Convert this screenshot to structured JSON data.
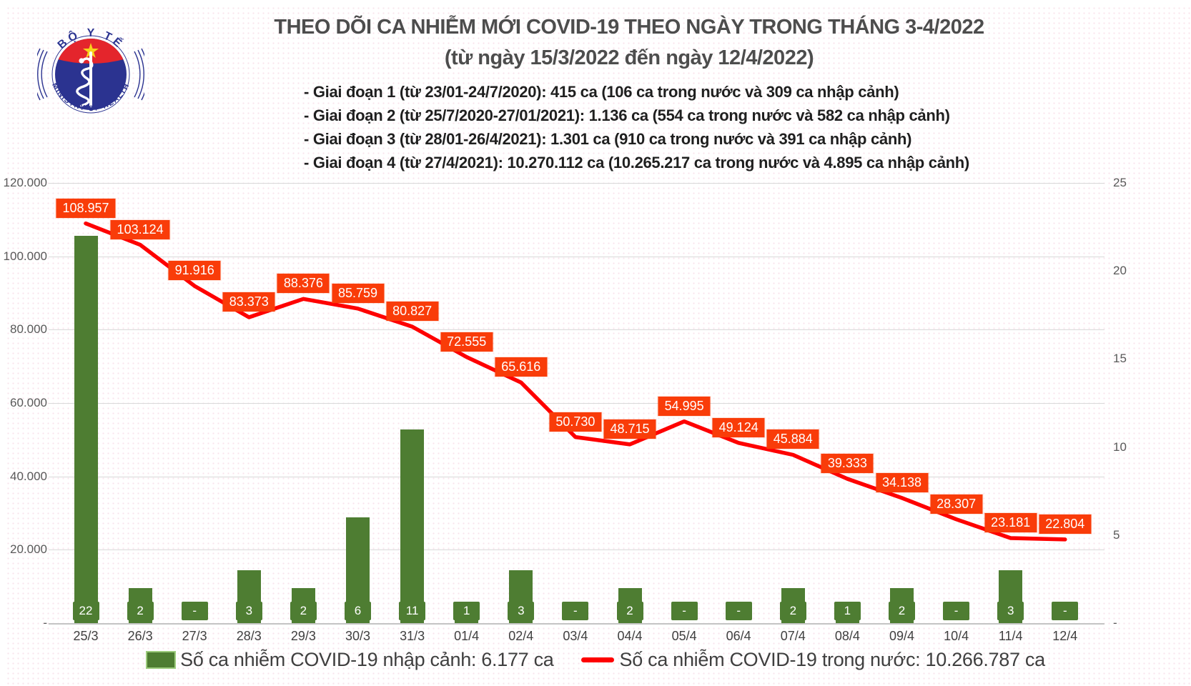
{
  "header": {
    "logo": {
      "top_text": "BỘ Y TẾ",
      "bottom_text": "MINISTRY OF HEALTH",
      "colors": {
        "red": "#e4252c",
        "blue": "#2b3390",
        "star": "#f8d21a"
      }
    },
    "title_line1": "THEO DÕI CA NHIỄM MỚI COVID-19 THEO NGÀY TRONG THÁNG 3-4/2022",
    "title_line2": "(từ ngày 15/3/2022 đến ngày 12/4/2022)",
    "periods": [
      "- Giai đoạn 1 (từ 23/01-24/7/2020): 415 ca (106 ca trong nước và 309 ca nhập cảnh)",
      "- Giai đoạn 2 (từ 25/7/2020-27/01/2021): 1.136 ca (554 ca trong nước và 582 ca nhập cảnh)",
      "- Giai đoạn 3 (từ 28/01-26/4/2021): 1.301 ca (910 ca trong nước và 391 ca nhập cảnh)",
      "- Giai đoạn 4 (từ 27/4/2021): 10.270.112 ca (10.265.217 ca trong nước và 4.895 ca nhập cảnh)"
    ]
  },
  "chart_data": {
    "type": "combo bar+line",
    "categories": [
      "25/3",
      "26/3",
      "27/3",
      "28/3",
      "29/3",
      "30/3",
      "31/3",
      "01/4",
      "02/4",
      "03/4",
      "04/4",
      "05/4",
      "06/4",
      "07/4",
      "08/4",
      "09/4",
      "10/4",
      "11/4",
      "12/4"
    ],
    "series": [
      {
        "name": "Số ca nhiễm COVID-19 nhập cảnh",
        "type": "bar",
        "axis": "right",
        "color": "#4e7d32",
        "values": [
          22,
          2,
          null,
          3,
          2,
          6,
          11,
          1,
          3,
          null,
          2,
          null,
          null,
          2,
          1,
          2,
          null,
          3,
          null
        ],
        "labels": [
          "22",
          "2",
          "-",
          "3",
          "2",
          "6",
          "11",
          "1",
          "3",
          "-",
          "2",
          "-",
          "-",
          "2",
          "1",
          "2",
          "-",
          "3",
          "-"
        ]
      },
      {
        "name": "Số ca nhiễm COVID-19 trong nước",
        "type": "line",
        "axis": "left",
        "color": "#fe0000",
        "label_bg": "#f93c09",
        "values": [
          108957,
          103124,
          91916,
          83373,
          88376,
          85759,
          80827,
          72555,
          65616,
          50730,
          48715,
          54995,
          49124,
          45884,
          39333,
          34138,
          28307,
          23181,
          22804
        ],
        "labels": [
          "108.957",
          "103.124",
          "91.916",
          "83.373",
          "88.376",
          "85.759",
          "80.827",
          "72.555",
          "65.616",
          "50.730",
          "48.715",
          "54.995",
          "49.124",
          "45.884",
          "39.333",
          "34.138",
          "28.307",
          "23.181",
          "22.804"
        ]
      }
    ],
    "left_axis": {
      "ticks": [
        "120.000",
        "100.000",
        "80.000",
        "60.000",
        "40.000",
        "20.000",
        "-"
      ],
      "min": 0,
      "max": 120000
    },
    "right_axis": {
      "ticks": [
        "25",
        "20",
        "15",
        "10",
        "5",
        "-"
      ],
      "min": 0,
      "max": 25
    },
    "grid": true,
    "legend_position": "bottom"
  },
  "legend": {
    "items": [
      {
        "marker": "green-bar-swatch",
        "label": "Số ca nhiễm COVID-19 nhập cảnh: 6.177 ca"
      },
      {
        "marker": "red-line-swatch",
        "label": "Số ca nhiễm COVID-19 trong nước: 10.266.787 ca"
      }
    ]
  }
}
